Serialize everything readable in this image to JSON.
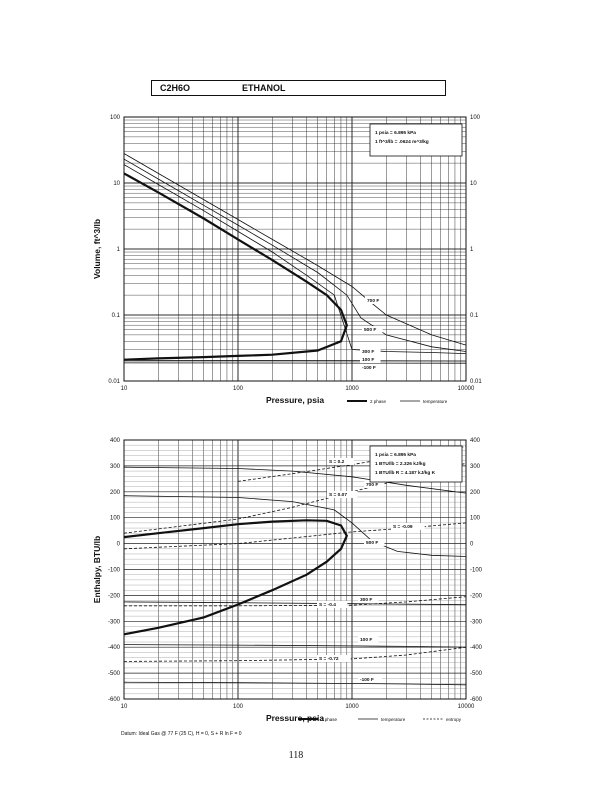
{
  "header": {
    "formula": "C2H6O",
    "name": "ETHANOL"
  },
  "page_number": "118",
  "footnote": "Datum: Ideal Gas @ 77 F (25 C), H = 0, S + R ln F = 0",
  "chart_data": [
    {
      "type": "line",
      "x_scale": "log",
      "y_scale": "log",
      "xlabel": "Pressure,  psia",
      "ylabel": "Volume, ft^3/lb",
      "xlim": [
        10,
        10000
      ],
      "ylim": [
        0.01,
        100
      ],
      "x_ticks": [
        "10",
        "100",
        "1000",
        "10000"
      ],
      "y_ticks": [
        "0.01",
        "0.1",
        "1",
        "10",
        "100"
      ],
      "y_tick_values": [
        0.01,
        0.1,
        1,
        10,
        100
      ],
      "grid": true,
      "conversion_notes": [
        "1 psia  =  6.895 kPa",
        "1 ft^3/lb  =  .0624 m^3/kg"
      ],
      "legend": [
        "2 phase",
        "temperature"
      ],
      "series": [
        {
          "name": "2 phase",
          "style": "heavy",
          "x": [
            10,
            20,
            50,
            100,
            200,
            400,
            600,
            800,
            900,
            800,
            500,
            200,
            100,
            50,
            20,
            10
          ],
          "y": [
            14,
            7.2,
            2.9,
            1.4,
            0.68,
            0.32,
            0.2,
            0.12,
            0.07,
            0.04,
            0.029,
            0.025,
            0.024,
            0.023,
            0.022,
            0.021
          ]
        },
        {
          "name": "700 F",
          "x": [
            10,
            20,
            50,
            100,
            200,
            500,
            1000,
            1500,
            2000,
            5000,
            10000
          ],
          "y": [
            28,
            14,
            5.6,
            2.8,
            1.4,
            0.56,
            0.27,
            0.15,
            0.1,
            0.05,
            0.035
          ]
        },
        {
          "name": "500 F",
          "x": [
            10,
            20,
            50,
            100,
            200,
            500,
            900,
            1200,
            2000,
            5000,
            10000
          ],
          "y": [
            23,
            11.5,
            4.6,
            2.3,
            1.14,
            0.44,
            0.2,
            0.09,
            0.05,
            0.033,
            0.028
          ]
        },
        {
          "name": "300 F",
          "x": [
            10,
            20,
            50,
            100,
            200,
            400,
            700,
            1000,
            2000,
            5000,
            10000
          ],
          "y": [
            19,
            9.5,
            3.8,
            1.85,
            0.9,
            0.4,
            0.2,
            0.03,
            0.028,
            0.027,
            0.026
          ]
        },
        {
          "name": "100 F",
          "x": [
            10,
            1000,
            10000
          ],
          "y": [
            0.0205,
            0.0203,
            0.0201
          ]
        },
        {
          "name": "-100 F",
          "x": [
            10,
            1000,
            10000
          ],
          "y": [
            0.0188,
            0.0187,
            0.0186
          ]
        }
      ]
    },
    {
      "type": "line",
      "x_scale": "log",
      "y_scale": "linear",
      "xlabel": "Pressure,  psia",
      "ylabel": "Enthalpy, BTU/lb",
      "xlim": [
        10,
        10000
      ],
      "ylim": [
        -600,
        400
      ],
      "x_ticks": [
        "10",
        "100",
        "1000",
        "10000"
      ],
      "y_ticks": [
        "-600",
        "-500",
        "-400",
        "-300",
        "-200",
        "-100",
        "0",
        "100",
        "200",
        "300",
        "400"
      ],
      "y_tick_values": [
        -600,
        -500,
        -400,
        -300,
        -200,
        -100,
        0,
        100,
        200,
        300,
        400
      ],
      "grid": true,
      "conversion_notes": [
        "1 psia  =  6.895 kPa",
        "1 BTU/lb  =  2.326 kJ/kg",
        "1 BTU/lb R  =  4.187 kJ/kg K"
      ],
      "legend": [
        "2 phase",
        "temperature",
        "entropy"
      ],
      "series": [
        {
          "name": "2 phase",
          "style": "heavy",
          "x": [
            10,
            20,
            50,
            100,
            200,
            400,
            600,
            800,
            900,
            800,
            600,
            400,
            200,
            100,
            50,
            20,
            10
          ],
          "y": [
            25,
            40,
            60,
            75,
            85,
            90,
            88,
            70,
            30,
            -20,
            -70,
            -120,
            -180,
            -235,
            -285,
            -325,
            -350
          ]
        },
        {
          "name": "700 F",
          "x": [
            10,
            100,
            300,
            1000,
            3000,
            10000
          ],
          "y": [
            295,
            290,
            280,
            258,
            225,
            195
          ]
        },
        {
          "name": "500 F",
          "x": [
            10,
            100,
            300,
            700,
            1000,
            1500,
            2500,
            5000,
            10000
          ],
          "y": [
            185,
            178,
            162,
            130,
            80,
            10,
            -30,
            -45,
            -50
          ]
        },
        {
          "name": "300 F",
          "x": [
            10,
            100,
            1000,
            3000,
            10000
          ],
          "y": [
            -225,
            -228,
            -232,
            -234,
            -236
          ]
        },
        {
          "name": "100 F",
          "x": [
            10,
            100,
            1000,
            3000,
            10000
          ],
          "y": [
            -390,
            -392,
            -395,
            -397,
            -400
          ]
        },
        {
          "name": "-100 F",
          "x": [
            10,
            100,
            1000,
            3000,
            10000
          ],
          "y": [
            -535,
            -537,
            -540,
            -542,
            -545
          ]
        },
        {
          "name": "S = 0.2",
          "style": "dashed",
          "x": [
            100,
            300,
            1000,
            3000,
            10000
          ],
          "y": [
            240,
            270,
            305,
            340,
            375
          ]
        },
        {
          "name": "S = 0.07",
          "style": "dashed",
          "x": [
            10,
            100,
            300,
            1000,
            10000
          ],
          "y": [
            40,
            95,
            140,
            200,
            310
          ]
        },
        {
          "name": "S = -0.09",
          "style": "dashed",
          "x": [
            10,
            100,
            1000,
            3000,
            10000
          ],
          "y": [
            -20,
            0,
            45,
            60,
            80
          ]
        },
        {
          "name": "S = -0.4",
          "style": "dashed",
          "x": [
            10,
            100,
            1000,
            3000,
            10000
          ],
          "y": [
            -240,
            -240,
            -238,
            -225,
            -205
          ]
        },
        {
          "name": "S = -0.72",
          "style": "dashed",
          "x": [
            10,
            100,
            1000,
            3000,
            10000
          ],
          "y": [
            -455,
            -452,
            -445,
            -430,
            -400
          ]
        }
      ]
    }
  ]
}
